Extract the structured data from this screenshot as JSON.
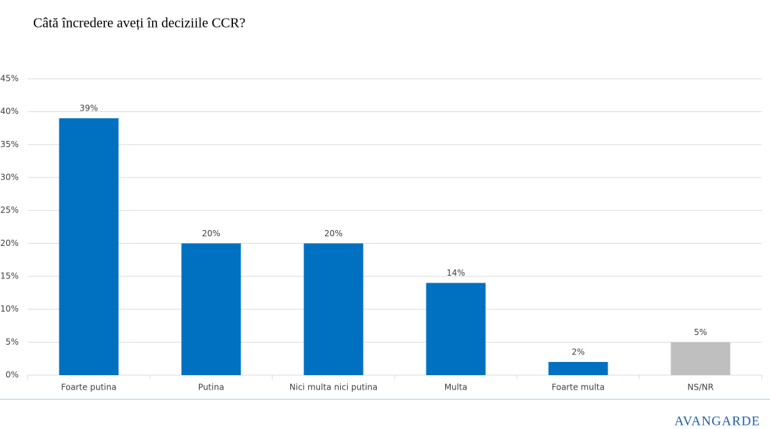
{
  "chart_data": {
    "type": "bar",
    "title": "Câtă încredere aveți în deciziile CCR?",
    "categories": [
      "Foarte putina",
      "Putina",
      "Nici multa nici putina",
      "Multa",
      "Foarte multa",
      "NS/NR"
    ],
    "values": [
      39,
      20,
      20,
      14,
      2,
      5
    ],
    "value_labels": [
      "39%",
      "20%",
      "20%",
      "14%",
      "2%",
      "5%"
    ],
    "colors": [
      "#0070c0",
      "#0070c0",
      "#0070c0",
      "#0070c0",
      "#0070c0",
      "#bfbfbf"
    ],
    "ylim": [
      0,
      45
    ],
    "yticks": [
      {
        "value": 0,
        "label": "0%"
      },
      {
        "value": 5,
        "label": "5%"
      },
      {
        "value": 10,
        "label": "10%"
      },
      {
        "value": 15,
        "label": "15%"
      },
      {
        "value": 20,
        "label": "20%"
      },
      {
        "value": 25,
        "label": "25%"
      },
      {
        "value": 30,
        "label": "30%"
      },
      {
        "value": 35,
        "label": "35%"
      },
      {
        "value": 40,
        "label": "40%"
      },
      {
        "value": 45,
        "label": "45%"
      }
    ],
    "grid": true
  },
  "footer": {
    "logo": "AVANGARDE"
  }
}
